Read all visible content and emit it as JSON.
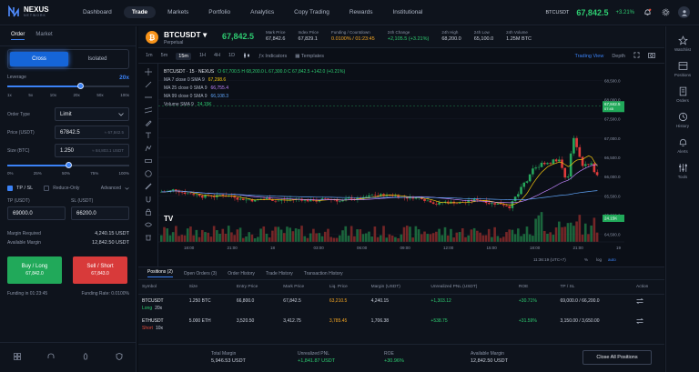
{
  "brand": {
    "name": "NEXUS",
    "sub": "NETWORK"
  },
  "nav": [
    "Dashboard",
    "Trade",
    "Markets",
    "Portfolio",
    "Analytics",
    "Copy Trading",
    "Rewards",
    "Institutional"
  ],
  "nav_active": 1,
  "topbar": {
    "pair": "BTCUSDT",
    "price": "67,842.5",
    "change": "+3.21%"
  },
  "order": {
    "tabs": [
      "Order",
      "Market"
    ],
    "margin_modes": [
      "Cross",
      "Isolated"
    ],
    "leverage_label": "Leverage",
    "leverage_value": "20x",
    "leverage_ticks": [
      "1x",
      "5x",
      "10x",
      "20x",
      "50x",
      "100x"
    ],
    "order_type_label": "Order Type",
    "order_type": "Limit",
    "price_label": "Price (USDT)",
    "price": "67842.5",
    "price_hint": "≈ 67,842.5",
    "size_label": "Size (BTC)",
    "size": "1.250",
    "size_hint": "≈ 84,803.1 USDT",
    "size_ticks": [
      "0%",
      "25%",
      "50%",
      "75%",
      "100%"
    ],
    "size_fraction": 0.5,
    "leverage_fraction": 0.6,
    "tpsl_label": "TP / SL",
    "reduce_label": "Reduce-Only",
    "advanced_label": "Advanced",
    "tp_label": "TP (USDT)",
    "tp": "69000.0",
    "sl_label": "SL (USDT)",
    "sl": "66200.0",
    "margin_req_label": "Margin Required",
    "margin_req": "4,240.15 USDT",
    "avail_label": "Available Margin",
    "avail": "12,842.50 USDT",
    "buy_label": "Buy / Long",
    "buy_price": "67,842.0",
    "sell_label": "Sell / Short",
    "sell_price": "67,843.0",
    "funding_label": "Funding in 01:23:45",
    "funding_rate_label": "Funding Rate: 0.0100%"
  },
  "ticker": {
    "symbol": "BTCUSDT",
    "type": "Perpetual",
    "price": "67,842.5",
    "stats": [
      {
        "label": "Mark Price",
        "value": "67,842.6",
        "cls": ""
      },
      {
        "label": "Index Price",
        "value": "67,829.1",
        "cls": ""
      },
      {
        "label": "Funding / Countdown",
        "value": "0.0100% / 01:23:45",
        "cls": "warn"
      },
      {
        "label": "24h Change",
        "value": "+2,105.5 (+3.21%)",
        "cls": "pos"
      },
      {
        "label": "24h High",
        "value": "68,200.0",
        "cls": ""
      },
      {
        "label": "24h Low",
        "value": "65,100.0",
        "cls": ""
      },
      {
        "label": "24h Volume",
        "value": "1.25M BTC",
        "cls": ""
      }
    ]
  },
  "chart_tools": {
    "timeframes": [
      "1m",
      "5m",
      "15m",
      "1H",
      "4H",
      "1D"
    ],
    "active": 2,
    "indicators": "Indicators",
    "templates": "Templates",
    "tv": "Trading View",
    "depth": "Depth"
  },
  "chart_legend": {
    "title": "BTCUSDT · 15 · NEXUS",
    "ohlc": "O 67,700.5  H 68,200.0  L 67,300.0  C 67,842.5  +142.0 (+0.21%)",
    "ma7": "MA 7 close 0 SMA 9",
    "ma7v": "67,298.6",
    "ma25": "MA 25 close 0 SMA 9",
    "ma25v": "66,755.4",
    "ma99": "MA 99 close 0 SMA 9",
    "ma99v": "66,108.3",
    "vol": "Volume SMA 9",
    "volv": "24.15K"
  },
  "chart_data": {
    "type": "candlestick",
    "y_ticks": [
      "68,500.0",
      "68,000.0",
      "67,500.0",
      "67,000.0",
      "66,500.0",
      "66,000.0",
      "65,500.0",
      "65,000.0",
      "64,500.0"
    ],
    "x_ticks": [
      "18:00",
      "21:00",
      "18",
      "03:00",
      "06:00",
      "09:00",
      "12:00",
      "15:00",
      "18:00",
      "21:00",
      "19"
    ],
    "ylim": [
      64300,
      68700
    ],
    "last_price": "67,842.5",
    "last_time": "07:45",
    "vol_label": "24.15K",
    "time_readout": "11:36:19 (UTC+7)",
    "scale_opts": [
      "%",
      "log",
      "auto"
    ]
  },
  "rail": [
    {
      "label": "Watchlist",
      "icon": "star-icon"
    },
    {
      "label": "Positions",
      "icon": "positions-icon"
    },
    {
      "label": "Orders",
      "icon": "orders-icon"
    },
    {
      "label": "History",
      "icon": "history-icon"
    },
    {
      "label": "Alerts",
      "icon": "bell-icon"
    },
    {
      "label": "Tools",
      "icon": "tools-icon"
    }
  ],
  "positions": {
    "tabs": [
      "Positions (2)",
      "Open Orders (3)",
      "Order History",
      "Trade History",
      "Transaction History"
    ],
    "headers": [
      "Symbol",
      "Size",
      "Entry Price",
      "Mark Price",
      "Liq. Price",
      "Margin (USDT)",
      "Unrealized PNL (USDT)",
      "ROE",
      "TP / SL",
      "Action"
    ],
    "rows": [
      {
        "symbol": "BTCUSDT",
        "side": "Long",
        "lev": "20x",
        "side_cls": "pos",
        "size": "1.250 BTC",
        "entry": "66,800.0",
        "mark": "67,842.5",
        "liq": "63,210.5",
        "margin": "4,240.15",
        "pnl": "+1,303.12",
        "roe": "+30.71%",
        "tpsl": "69,000.0 / 66,200.0"
      },
      {
        "symbol": "ETHUSDT",
        "side": "Short",
        "lev": "10x",
        "side_cls": "neg",
        "size": "5.000 ETH",
        "entry": "3,520.50",
        "mark": "3,412.75",
        "liq": "3,785.45",
        "margin": "1,706.38",
        "pnl": "+538.75",
        "roe": "+31.59%",
        "tpsl": "3,150.00 / 3,650.00"
      }
    ],
    "summary": [
      {
        "label": "Total Margin",
        "value": "5,946.53 USDT",
        "cls": ""
      },
      {
        "label": "Unrealized PNL",
        "value": "+1,841.87 USDT",
        "cls": "pos"
      },
      {
        "label": "ROE",
        "value": "+30.96%",
        "cls": "pos"
      },
      {
        "label": "Available Margin",
        "value": "12,842.50 USDT",
        "cls": ""
      }
    ],
    "close_all": "Close All Positions"
  },
  "colors": {
    "accent": "#3b82f6",
    "up": "#2ecc71",
    "down": "#e74c3c",
    "bg": "#0b0f17"
  }
}
